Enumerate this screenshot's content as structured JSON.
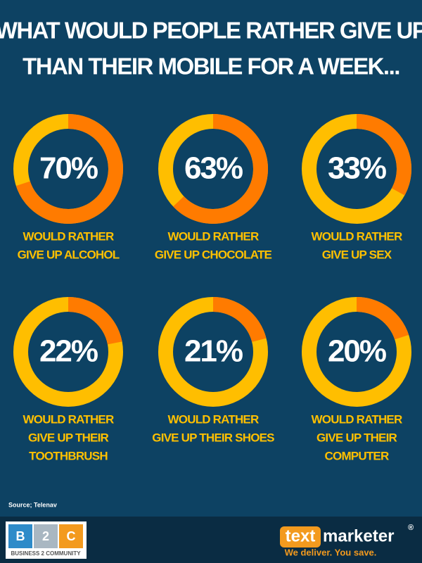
{
  "title": [
    "WHAT WOULD PEOPLE RATHER GIVE UP",
    "THAN THEIR MOBILE FOR A WEEK..."
  ],
  "chart_data": [
    {
      "type": "donut",
      "values": [
        70
      ],
      "value_labels": [
        "70%"
      ],
      "caption": [
        "WOULD RATHER",
        "GIVE UP ALCOHOL"
      ],
      "color": "#ff7b00",
      "track_color": "#ffbe00"
    },
    {
      "type": "donut",
      "values": [
        63
      ],
      "value_labels": [
        "63%"
      ],
      "caption": [
        "WOULD RATHER",
        "GIVE UP CHOCOLATE"
      ],
      "color": "#ff7b00",
      "track_color": "#ffbe00"
    },
    {
      "type": "donut",
      "values": [
        33
      ],
      "value_labels": [
        "33%"
      ],
      "caption": [
        "WOULD RATHER",
        "GIVE UP SEX"
      ],
      "color": "#ff7b00",
      "track_color": "#ffbe00"
    },
    {
      "type": "donut",
      "values": [
        22
      ],
      "value_labels": [
        "22%"
      ],
      "caption": [
        "WOULD RATHER",
        "GIVE UP THEIR",
        "TOOTHBRUSH"
      ],
      "color": "#ff7b00",
      "track_color": "#ffbe00"
    },
    {
      "type": "donut",
      "values": [
        21
      ],
      "value_labels": [
        "21%"
      ],
      "caption": [
        "WOULD RATHER",
        "GIVE UP THEIR SHOES"
      ],
      "color": "#ff7b00",
      "track_color": "#ffbe00"
    },
    {
      "type": "donut",
      "values": [
        20
      ],
      "value_labels": [
        "20%"
      ],
      "caption": [
        "WOULD RATHER",
        "GIVE UP THEIR",
        "COMPUTER"
      ],
      "color": "#ff7b00",
      "track_color": "#ffbe00"
    }
  ],
  "source": "Source; Telenav",
  "footer": {
    "b2c_letters": [
      "B",
      "2",
      "C"
    ],
    "b2c_name": "BUSINESS 2 COMMUNITY",
    "tm_text": "text",
    "tm_marketer": "marketer",
    "tm_reg": "®",
    "tm_tagline": "We deliver. You save."
  }
}
